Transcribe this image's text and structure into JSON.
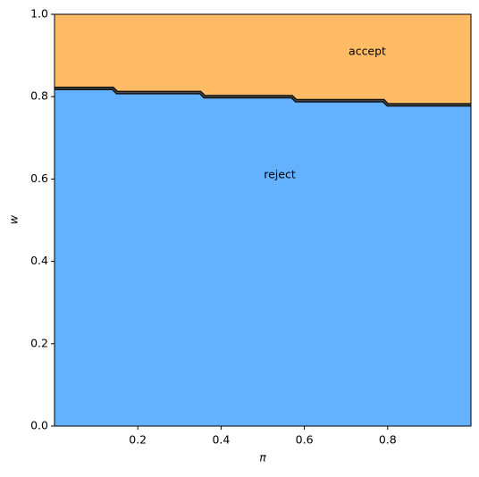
{
  "chart_data": {
    "type": "area",
    "xlabel": "π",
    "ylabel": "w",
    "x": [
      0,
      0.14,
      0.15,
      0.35,
      0.36,
      0.57,
      0.58,
      0.79,
      0.8,
      1.0
    ],
    "values": [
      0.82,
      0.82,
      0.81,
      0.81,
      0.8,
      0.8,
      0.79,
      0.79,
      0.78,
      0.78
    ],
    "above_color": "#ffbb66",
    "below_color": "#64b1ff",
    "line_color": "#111111",
    "annotations": [
      "accept",
      "reject"
    ],
    "xlim": [
      0,
      1
    ],
    "xticks": [
      0.2,
      0.4,
      0.6,
      0.8
    ],
    "ylim": [
      0,
      1
    ],
    "yticks": [
      {
        "value": 0,
        "label": "0.0"
      },
      0.2,
      0.4,
      0.6,
      0.8,
      {
        "value": 1,
        "label": "1.0"
      }
    ]
  }
}
